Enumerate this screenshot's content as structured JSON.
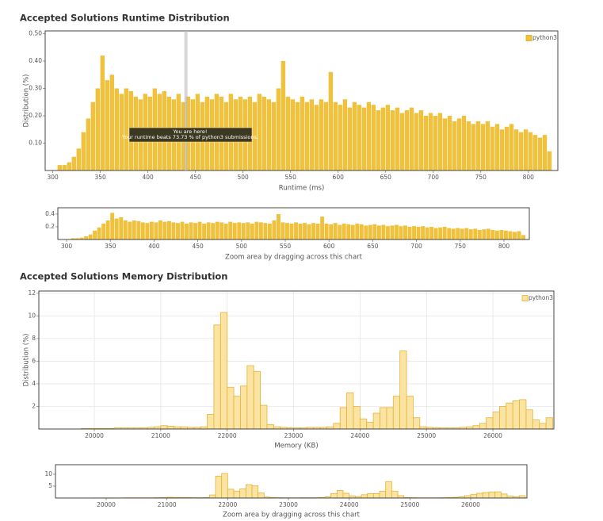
{
  "chart_data": [
    {
      "type": "histogram",
      "title": "Accepted Solutions Runtime Distribution",
      "xlabel": "Runtime (ms)",
      "ylabel": "Distribution (%)",
      "bins": [
        305,
        310,
        315,
        320,
        325,
        330,
        335,
        340,
        345,
        350,
        355,
        360,
        365,
        370,
        375,
        380,
        385,
        390,
        395,
        400,
        405,
        410,
        415,
        420,
        425,
        430,
        435,
        440,
        445,
        450,
        455,
        460,
        465,
        470,
        475,
        480,
        485,
        490,
        495,
        500,
        505,
        510,
        515,
        520,
        525,
        530,
        535,
        540,
        545,
        550,
        555,
        560,
        565,
        570,
        575,
        580,
        585,
        590,
        595,
        600,
        605,
        610,
        615,
        620,
        625,
        630,
        635,
        640,
        645,
        650,
        655,
        660,
        665,
        670,
        675,
        680,
        685,
        690,
        695,
        700,
        705,
        710,
        715,
        720,
        725,
        730,
        735,
        740,
        745,
        750,
        755,
        760,
        765,
        770,
        775,
        780,
        785,
        790,
        795,
        800,
        805,
        810,
        815,
        820,
        825
      ],
      "series": [
        {
          "name": "python3",
          "color": "#efc13c",
          "values": [
            0.02,
            0.02,
            0.03,
            0.05,
            0.08,
            0.14,
            0.19,
            0.25,
            0.3,
            0.42,
            0.33,
            0.35,
            0.3,
            0.28,
            0.3,
            0.29,
            0.27,
            0.26,
            0.28,
            0.27,
            0.3,
            0.28,
            0.29,
            0.27,
            0.26,
            0.28,
            0.25,
            0.27,
            0.26,
            0.28,
            0.25,
            0.27,
            0.26,
            0.28,
            0.27,
            0.25,
            0.28,
            0.26,
            0.27,
            0.26,
            0.27,
            0.25,
            0.28,
            0.27,
            0.26,
            0.25,
            0.3,
            0.4,
            0.27,
            0.26,
            0.25,
            0.27,
            0.25,
            0.26,
            0.24,
            0.26,
            0.25,
            0.36,
            0.25,
            0.24,
            0.26,
            0.23,
            0.25,
            0.24,
            0.23,
            0.25,
            0.24,
            0.22,
            0.23,
            0.24,
            0.22,
            0.23,
            0.21,
            0.22,
            0.23,
            0.21,
            0.22,
            0.2,
            0.21,
            0.2,
            0.21,
            0.19,
            0.2,
            0.18,
            0.19,
            0.2,
            0.18,
            0.17,
            0.18,
            0.17,
            0.18,
            0.16,
            0.17,
            0.15,
            0.16,
            0.17,
            0.15,
            0.14,
            0.15,
            0.14,
            0.13,
            0.12,
            0.13,
            0.07
          ]
        }
      ],
      "xlim": [
        292,
        831
      ],
      "ylim": [
        0,
        0.51
      ],
      "xticks": [
        300,
        350,
        400,
        450,
        500,
        550,
        600,
        650,
        700,
        750,
        800
      ],
      "yticks": [
        {
          "value": 0.1,
          "label": "0.10"
        },
        {
          "value": 0.2,
          "label": "0.20"
        },
        {
          "value": 0.3,
          "label": "0.30"
        },
        {
          "value": 0.4,
          "label": "0.40"
        },
        {
          "value": 0.5,
          "label": "0.50"
        }
      ],
      "grid": false,
      "legend": "upper right",
      "bar_style": "solid",
      "annotation": {
        "x": 440,
        "lines": [
          "You are here!",
          "Your runtime beats 73.73 % of python3 submissions."
        ]
      },
      "navigator": {
        "label": "Zoom area by dragging across this chart",
        "xlim": [
          290,
          829
        ],
        "ylim": [
          0,
          0.5
        ],
        "xticks": [
          300,
          350,
          400,
          450,
          500,
          550,
          600,
          650,
          700,
          750,
          800
        ],
        "yticks": [
          0.2,
          0.4
        ]
      }
    },
    {
      "type": "histogram",
      "title": "Accepted Solutions Memory Distribution",
      "xlabel": "Memory (KB)",
      "ylabel": "Distribution (%)",
      "bins": [
        19200,
        19300,
        19400,
        19500,
        19600,
        19700,
        19800,
        19900,
        20000,
        20100,
        20200,
        20300,
        20400,
        20500,
        20600,
        20700,
        20800,
        20900,
        21000,
        21100,
        21200,
        21300,
        21400,
        21500,
        21600,
        21700,
        21800,
        21900,
        22000,
        22100,
        22200,
        22300,
        22400,
        22500,
        22600,
        22700,
        22800,
        22900,
        23000,
        23100,
        23200,
        23300,
        23400,
        23500,
        23600,
        23700,
        23800,
        23900,
        24000,
        24100,
        24200,
        24300,
        24400,
        24500,
        24600,
        24700,
        24800,
        24900,
        25000,
        25100,
        25200,
        25300,
        25400,
        25500,
        25600,
        25700,
        25800,
        25900,
        26000,
        26100,
        26200,
        26300,
        26400,
        26500,
        26600,
        26700,
        26800,
        26900
      ],
      "series": [
        {
          "name": "python3",
          "color": "#fbe3a1",
          "edge_color": "#e4b43a",
          "values": [
            0,
            0,
            0,
            0,
            0,
            0,
            0.05,
            0.05,
            0.05,
            0.05,
            0.05,
            0.1,
            0.1,
            0.1,
            0.1,
            0.1,
            0.15,
            0.2,
            0.3,
            0.25,
            0.2,
            0.2,
            0.15,
            0.15,
            0.2,
            1.3,
            9.2,
            10.3,
            3.7,
            2.9,
            3.8,
            5.6,
            5.1,
            2.1,
            0.4,
            0.2,
            0.15,
            0.1,
            0.1,
            0.1,
            0.15,
            0.15,
            0.15,
            0.2,
            0.5,
            1.9,
            3.2,
            2.0,
            0.9,
            0.6,
            1.4,
            1.9,
            1.9,
            2.9,
            6.9,
            2.9,
            1.0,
            0.2,
            0.15,
            0.1,
            0.1,
            0.1,
            0.1,
            0.15,
            0.2,
            0.3,
            0.5,
            1.0,
            1.5,
            2.0,
            2.3,
            2.5,
            2.6,
            1.7,
            0.8,
            0.5,
            1.0
          ]
        }
      ],
      "xlim": [
        19165,
        26918
      ],
      "ylim": [
        0,
        12.2
      ],
      "xticks": [
        20000,
        21000,
        22000,
        23000,
        24000,
        25000,
        26000
      ],
      "yticks": [
        2,
        4,
        6,
        8,
        10,
        12
      ],
      "grid": true,
      "legend": "upper right",
      "bar_style": "outlined",
      "navigator": {
        "label": "Zoom area by dragging across this chart",
        "xlim": [
          19165,
          26926
        ],
        "ylim": [
          0,
          14
        ],
        "xticks": [
          20000,
          21000,
          22000,
          23000,
          24000,
          25000,
          26000
        ],
        "yticks": [
          5,
          10
        ]
      }
    }
  ]
}
